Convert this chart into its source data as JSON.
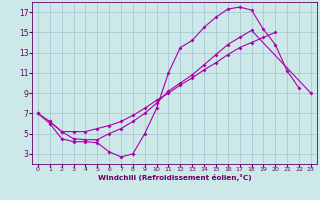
{
  "xlabel": "Windchill (Refroidissement éolien,°C)",
  "xlim": [
    -0.5,
    23.5
  ],
  "ylim": [
    2.0,
    18.0
  ],
  "xticks": [
    0,
    1,
    2,
    3,
    4,
    5,
    6,
    7,
    8,
    9,
    10,
    11,
    12,
    13,
    14,
    15,
    16,
    17,
    18,
    19,
    20,
    21,
    22,
    23
  ],
  "yticks": [
    3,
    5,
    7,
    9,
    11,
    13,
    15,
    17
  ],
  "bg_color": "#cce8e8",
  "grid_color": "#99bbcc",
  "line_color": "#aa00aa",
  "line1_x": [
    0,
    1,
    2,
    3,
    4,
    5,
    6,
    7,
    8,
    9,
    10,
    11,
    12,
    13,
    14,
    15,
    16,
    17,
    18,
    19,
    20,
    21,
    22
  ],
  "line1_y": [
    7.0,
    6.0,
    4.5,
    4.2,
    4.2,
    4.1,
    3.2,
    2.7,
    3.0,
    5.0,
    7.5,
    11.0,
    13.5,
    14.2,
    15.5,
    16.5,
    17.3,
    17.5,
    17.2,
    15.3,
    13.8,
    11.2,
    9.5
  ],
  "line2_x": [
    0,
    1,
    2,
    3,
    4,
    5,
    6,
    7,
    8,
    9,
    10,
    11,
    12,
    13,
    14,
    15,
    16,
    17,
    18,
    19,
    20
  ],
  "line2_y": [
    7.0,
    6.2,
    5.2,
    5.2,
    5.2,
    5.5,
    5.8,
    6.2,
    6.8,
    7.5,
    8.3,
    9.0,
    9.8,
    10.5,
    11.3,
    12.0,
    12.8,
    13.5,
    14.0,
    14.5,
    15.0
  ],
  "line3_x": [
    1,
    2,
    3,
    4,
    5,
    6,
    7,
    8,
    9,
    10,
    11,
    12,
    13,
    14,
    15,
    16,
    17,
    18,
    23
  ],
  "line3_y": [
    6.2,
    5.2,
    4.5,
    4.4,
    4.4,
    5.0,
    5.5,
    6.2,
    7.0,
    8.0,
    9.2,
    10.0,
    10.8,
    11.8,
    12.8,
    13.8,
    14.5,
    15.2,
    9.0
  ]
}
